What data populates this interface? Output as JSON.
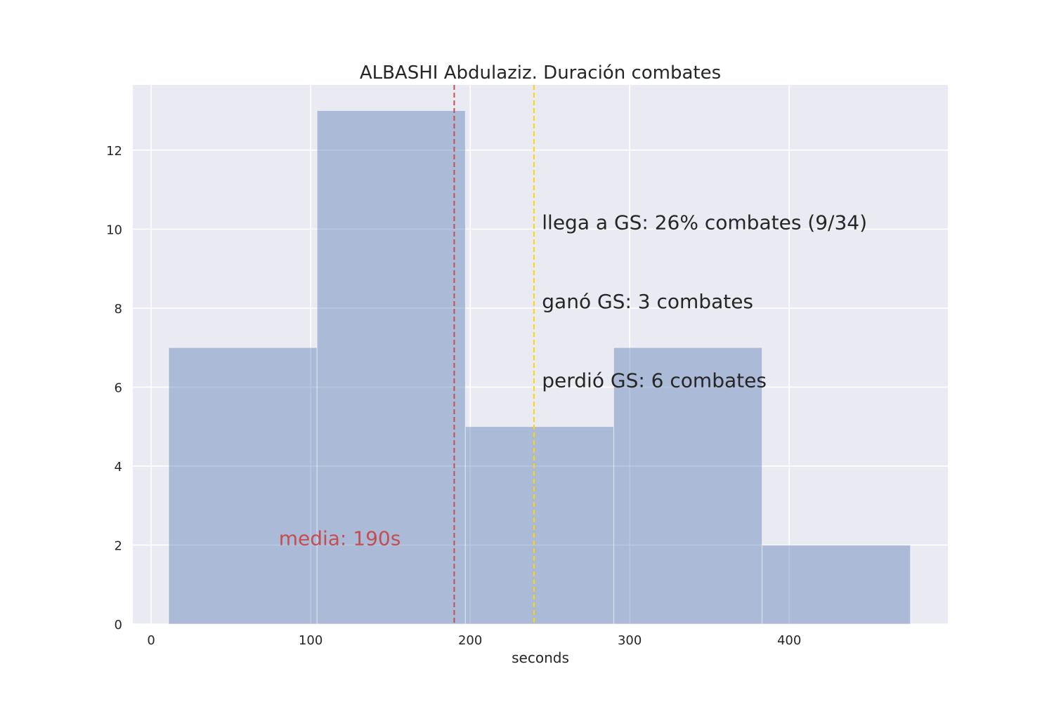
{
  "chart_data": {
    "type": "bar",
    "title": "ALBASHI Abdulaziz. Duración combates",
    "xlabel": "seconds",
    "ylabel": "",
    "xlim": [
      -11.5,
      499.5
    ],
    "ylim": [
      0,
      13.65
    ],
    "xticks": [
      0,
      100,
      200,
      300,
      400
    ],
    "yticks": [
      0,
      2,
      4,
      6,
      8,
      10,
      12
    ],
    "grid": true,
    "bins": [
      {
        "start": 11,
        "end": 104,
        "count": 7
      },
      {
        "start": 104,
        "end": 197,
        "count": 13
      },
      {
        "start": 197,
        "end": 290,
        "count": 5
      },
      {
        "start": 290,
        "end": 383,
        "count": 7
      },
      {
        "start": 383,
        "end": 476,
        "count": 2
      }
    ],
    "bar_color": "#4c72b0",
    "bar_opacity": 0.4,
    "background_color": "#eaeaf2",
    "mean_line": {
      "x": 190,
      "color": "#c44e52",
      "style": "dashed"
    },
    "gs_line": {
      "x": 240,
      "color": "#ffd700",
      "style": "dashed"
    },
    "annotations": [
      {
        "text": "media: 190s",
        "x": 80,
        "y": 2.0,
        "color": "#c44e52"
      },
      {
        "text": "llega a GS: 26% combates (9/34)",
        "x": 245,
        "y": 10.0,
        "color": "#262626"
      },
      {
        "text": "ganó GS: 3 combates",
        "x": 245,
        "y": 8.0,
        "color": "#262626"
      },
      {
        "text": "perdió GS: 6 combates",
        "x": 245,
        "y": 6.0,
        "color": "#262626"
      }
    ]
  }
}
